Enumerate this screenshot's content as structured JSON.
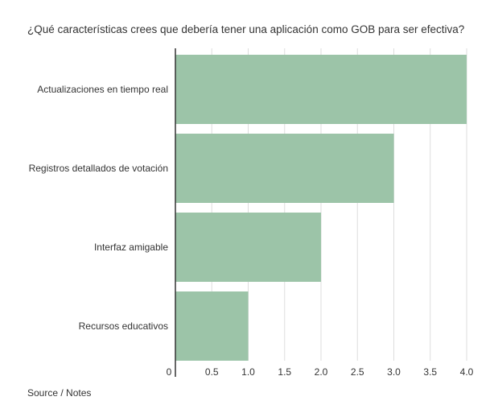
{
  "chart_data": {
    "type": "bar",
    "orientation": "horizontal",
    "title": "¿Qué características crees que debería tener una aplicación como GOB para ser efectiva?",
    "categories": [
      "Actualizaciones en tiempo real",
      "Registros detallados de votación",
      "Interfaz amigable",
      "Recursos educativos"
    ],
    "values": [
      4.0,
      3.0,
      2.0,
      1.0
    ],
    "xlabel": "",
    "ylabel": "",
    "xlim": [
      0,
      4.0
    ],
    "ticks": [
      0,
      0.5,
      1.0,
      1.5,
      2.0,
      2.5,
      3.0,
      3.5,
      4.0
    ],
    "tick_labels": [
      "0",
      "0.5",
      "1.0",
      "1.5",
      "2.0",
      "2.5",
      "3.0",
      "3.5",
      "4.0"
    ],
    "grid": true,
    "bar_color": "#9cc4a8",
    "grid_color": "#dddddd",
    "axis_color": "#333333",
    "source_note": "Source / Notes"
  }
}
